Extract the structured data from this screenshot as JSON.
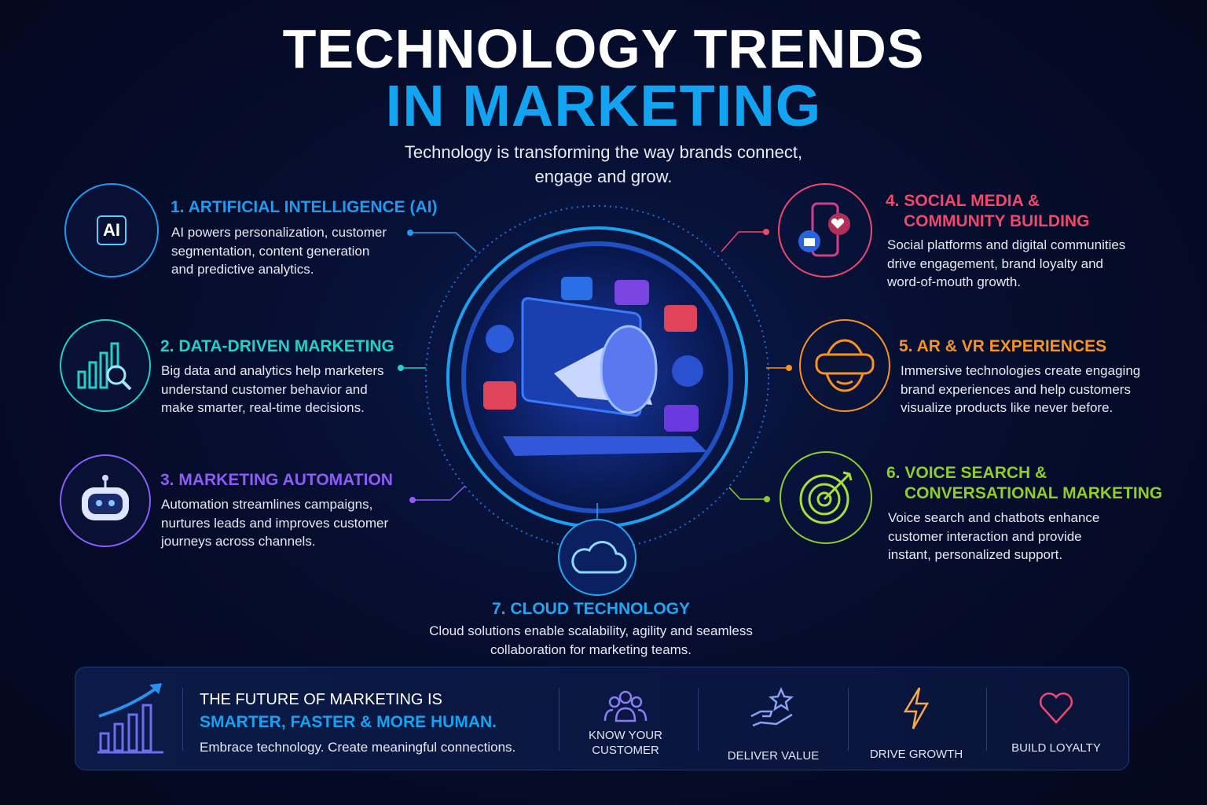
{
  "header": {
    "title_line1": "TECHNOLOGY TRENDS",
    "title_line2": "IN MARKETING",
    "subtitle_lines": [
      "Technology is transforming the way brands connect,",
      "engage and grow."
    ]
  },
  "colors": {
    "ai": "#1e9bf0",
    "data": "#1fd1c8",
    "automation": "#8b5cf6",
    "social": "#f0476a",
    "arvr": "#f7931e",
    "voice": "#8ccf2a",
    "cloud": "#22a6f0",
    "accent": "#12a4f0"
  },
  "trends": [
    {
      "title_lines": [
        "1. ARTIFICIAL INTELLIGENCE (AI)"
      ],
      "desc_lines": [
        "AI powers personalization, customer",
        "segmentation, content generation",
        "and predictive analytics."
      ],
      "icon": "ai-chip-icon",
      "icon_text": "AI"
    },
    {
      "title_lines": [
        "2. DATA-DRIVEN MARKETING"
      ],
      "desc_lines": [
        "Big data and analytics help marketers",
        "understand customer behavior and",
        "make smarter, real-time decisions."
      ],
      "icon": "analytics-magnifier-icon"
    },
    {
      "title_lines": [
        "3. MARKETING AUTOMATION"
      ],
      "desc_lines": [
        "Automation streamlines campaigns,",
        "nurtures leads and improves customer",
        "journeys across channels."
      ],
      "icon": "robot-icon"
    },
    {
      "title_lines": [
        "4. SOCIAL MEDIA &",
        "COMMUNITY BUILDING"
      ],
      "desc_lines": [
        "Social platforms and digital communities",
        "drive engagement, brand loyalty and",
        "word-of-mouth growth."
      ],
      "icon": "smartphone-like-heart-icon"
    },
    {
      "title_lines": [
        "5. AR & VR EXPERIENCES"
      ],
      "desc_lines": [
        "Immersive technologies create engaging",
        "brand experiences and help customers",
        "visualize products like never before."
      ],
      "icon": "vr-headset-icon"
    },
    {
      "title_lines": [
        "6. VOICE SEARCH &",
        "CONVERSATIONAL MARKETING"
      ],
      "desc_lines": [
        "Voice search and chatbots enhance",
        "customer interaction and provide",
        "instant, personalized support."
      ],
      "icon": "target-arrow-icon"
    },
    {
      "title_lines": [
        "7. CLOUD TECHNOLOGY"
      ],
      "desc_lines": [
        "Cloud solutions enable scalability, agility and seamless",
        "collaboration for marketing teams."
      ],
      "icon": "cloud-icon"
    }
  ],
  "footer": {
    "line1": "THE FUTURE OF MARKETING IS",
    "line2": "SMARTER, FASTER & MORE HUMAN.",
    "line3": "Embrace technology. Create meaningful connections.",
    "values": [
      {
        "label_lines": [
          "KNOW YOUR",
          "CUSTOMER"
        ],
        "icon": "people-group-icon",
        "color": "#8b7cf6"
      },
      {
        "label_lines": [
          "DELIVER VALUE"
        ],
        "icon": "hand-star-icon",
        "color": "#8aa0f0"
      },
      {
        "label_lines": [
          "DRIVE GROWTH"
        ],
        "icon": "lightning-icon",
        "color": "#f7a84a"
      },
      {
        "label_lines": [
          "BUILD LOYALTY"
        ],
        "icon": "heart-icon",
        "color": "#f0476a"
      }
    ]
  }
}
